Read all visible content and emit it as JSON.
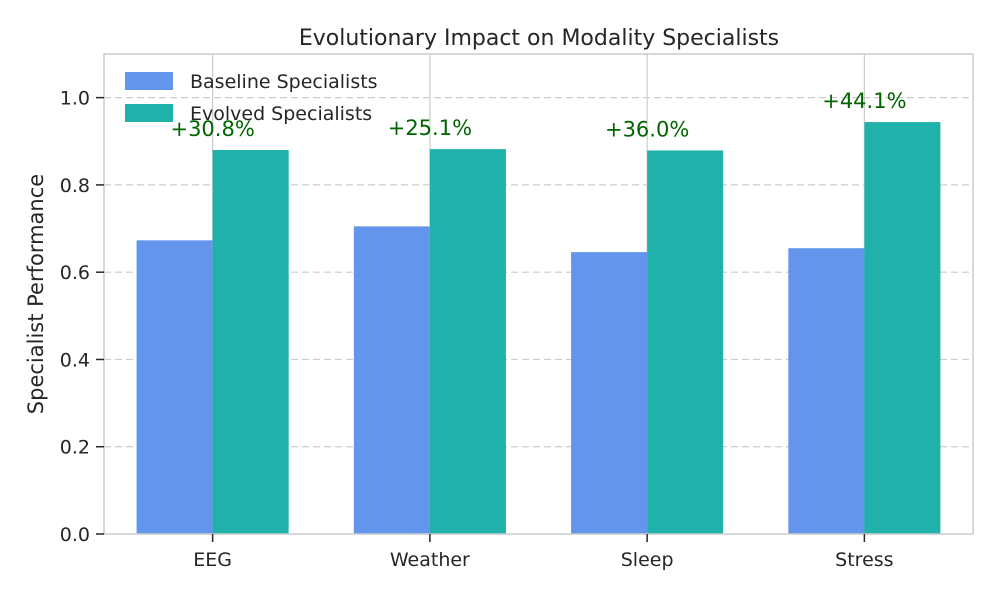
{
  "chart_data": {
    "type": "bar",
    "title": "Evolutionary Impact on Modality Specialists",
    "xlabel": "",
    "ylabel": "Specialist Performance",
    "ylim": [
      0,
      1.1
    ],
    "yticks": [
      0.0,
      0.2,
      0.4,
      0.6,
      0.8,
      1.0
    ],
    "ytick_labels": [
      "0.0",
      "0.2",
      "0.4",
      "0.6",
      "0.8",
      "1.0"
    ],
    "grid": "y-dashed",
    "legend_position": "top-left",
    "categories": [
      "EEG",
      "Weather",
      "Sleep",
      "Stress"
    ],
    "series": [
      {
        "name": "Baseline Specialists",
        "values": [
          0.673,
          0.705,
          0.646,
          0.655
        ],
        "color": "#6495ED"
      },
      {
        "name": "Evolved Specialists",
        "values": [
          0.88,
          0.882,
          0.879,
          0.944
        ],
        "color": "#20B2AA"
      }
    ],
    "annotations": [
      "+30.8%",
      "+25.1%",
      "+36.0%",
      "+44.1%"
    ],
    "annotation_color": "#006400"
  }
}
